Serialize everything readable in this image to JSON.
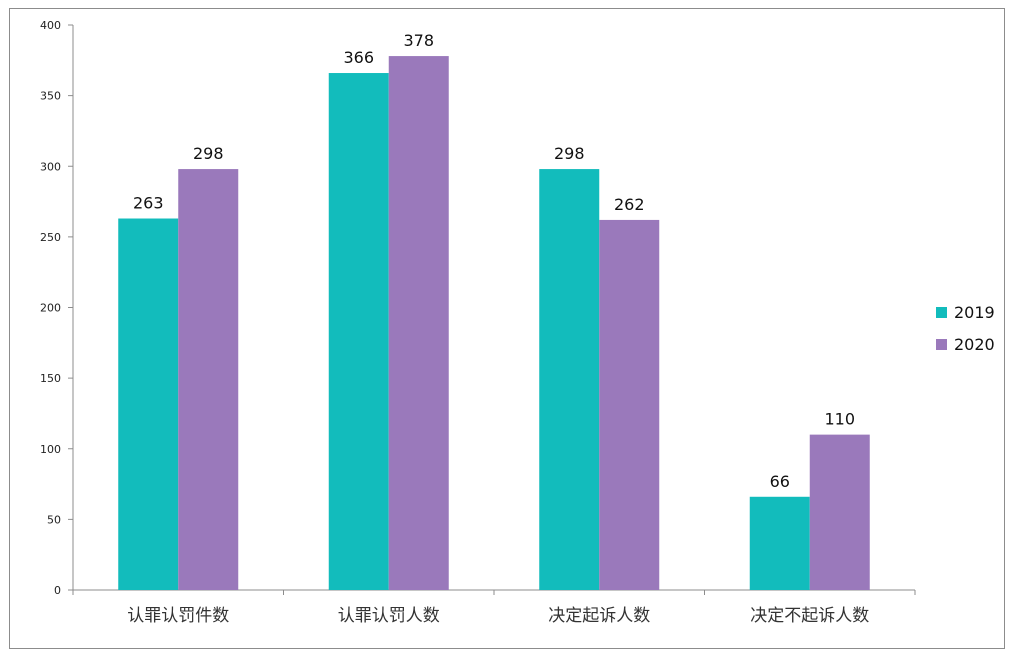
{
  "chart_data": {
    "type": "bar",
    "title": "",
    "xlabel": "",
    "ylabel": "",
    "categories": [
      "认罪认罚件数",
      "认罪认罚人数",
      "决定起诉人数",
      "决定不起诉人数"
    ],
    "series": [
      {
        "name": "2019",
        "values": [
          263,
          366,
          298,
          66
        ],
        "color": "#12bcbc"
      },
      {
        "name": "2020",
        "values": [
          298,
          378,
          262,
          110
        ],
        "color": "#9a79bb"
      }
    ],
    "ylim": [
      0,
      400
    ],
    "yticks": [
      0,
      50,
      100,
      150,
      200,
      250,
      300,
      350,
      400
    ],
    "grid": false,
    "legend": "right",
    "data_labels": true
  }
}
